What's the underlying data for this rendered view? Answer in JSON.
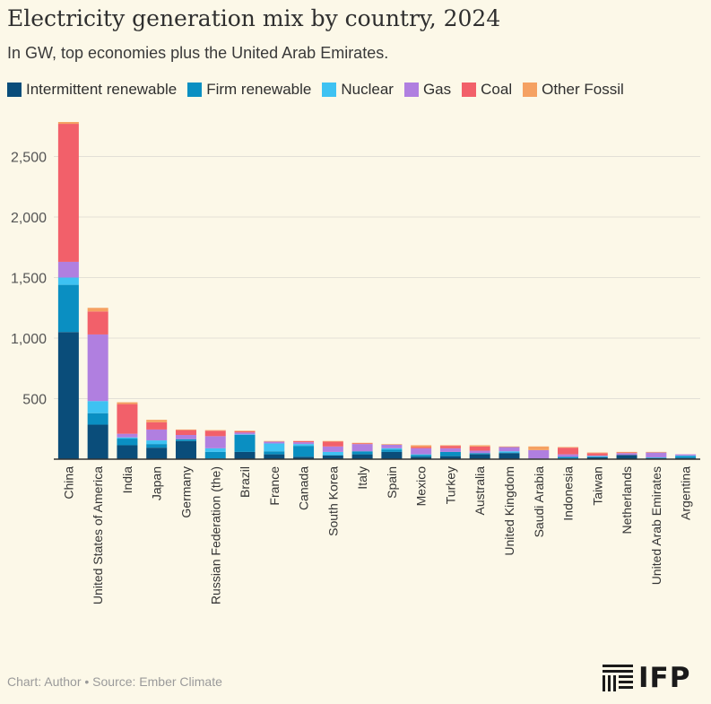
{
  "title": "Electricity generation mix by country, 2024",
  "subtitle": "In GW, top economies plus the United Arab Emirates.",
  "source": "Chart: Author • Source: Ember Climate",
  "logo": {
    "text": "IFP",
    "icon": "striped-building-icon"
  },
  "colors": {
    "Intermittent renewable": "#0a4d7a",
    "Firm renewable": "#0a8fc2",
    "Nuclear": "#3ec2f2",
    "Gas": "#b07fe0",
    "Coal": "#f2606a",
    "Other Fossil": "#f5a162"
  },
  "chart_data": {
    "type": "bar",
    "stacked": true,
    "title": "Electricity generation mix by country, 2024",
    "subtitle": "In GW, top economies plus the United Arab Emirates.",
    "xlabel": "",
    "ylabel": "",
    "ylim": [
      0,
      2800
    ],
    "yticks": [
      500,
      1000,
      1500,
      2000,
      2500
    ],
    "ytick_labels": [
      "500",
      "1,000",
      "1,500",
      "2,000",
      "2,500"
    ],
    "grid": "horizontal",
    "legend_position": "top",
    "categories": [
      "China",
      "United States of America",
      "India",
      "Japan",
      "Germany",
      "Russian Federation (the)",
      "Brazil",
      "France",
      "Canada",
      "South Korea",
      "Italy",
      "Spain",
      "Mexico",
      "Turkey",
      "Australia",
      "United Kingdom",
      "Saudi Arabia",
      "Indonesia",
      "Taiwan",
      "Netherlands",
      "United Arab Emirates",
      "Argentina"
    ],
    "series": [
      {
        "name": "Intermittent renewable",
        "values": [
          1050,
          285,
          115,
          95,
          150,
          5,
          60,
          40,
          20,
          30,
          40,
          60,
          20,
          25,
          40,
          50,
          5,
          5,
          15,
          35,
          10,
          10
        ]
      },
      {
        "name": "Firm renewable",
        "values": [
          390,
          95,
          55,
          30,
          15,
          55,
          140,
          25,
          90,
          5,
          25,
          20,
          15,
          35,
          10,
          5,
          0,
          15,
          5,
          0,
          0,
          15
        ]
      },
      {
        "name": "Nuclear",
        "values": [
          60,
          100,
          10,
          30,
          0,
          30,
          5,
          65,
          15,
          25,
          0,
          10,
          5,
          0,
          0,
          10,
          0,
          0,
          5,
          0,
          5,
          5
        ]
      },
      {
        "name": "Gas",
        "values": [
          130,
          550,
          30,
          90,
          35,
          100,
          15,
          15,
          15,
          45,
          60,
          30,
          50,
          30,
          20,
          35,
          70,
          20,
          5,
          15,
          40,
          10
        ]
      },
      {
        "name": "Coal",
        "values": [
          1140,
          190,
          245,
          60,
          40,
          45,
          10,
          0,
          10,
          40,
          5,
          0,
          10,
          20,
          35,
          0,
          0,
          55,
          20,
          5,
          0,
          0
        ]
      },
      {
        "name": "Other Fossil",
        "values": [
          15,
          30,
          15,
          20,
          5,
          5,
          5,
          5,
          0,
          5,
          5,
          5,
          15,
          5,
          10,
          5,
          30,
          5,
          5,
          5,
          5,
          0
        ]
      }
    ]
  }
}
